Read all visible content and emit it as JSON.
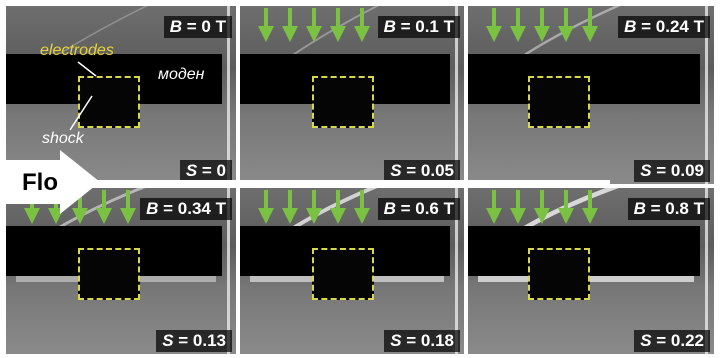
{
  "annotations": {
    "electrodes": "electrodes",
    "model": "моден",
    "shock": "shock",
    "flow": "Flo"
  },
  "panels": [
    {
      "b_label": "B = 0 T",
      "s_label": "S = 0",
      "b_tesla": 0,
      "s_value": 0,
      "arrows": 0
    },
    {
      "b_label": "B = 0.1 T",
      "s_label": "S = 0.05",
      "b_tesla": 0.1,
      "s_value": 0.05,
      "arrows": 5
    },
    {
      "b_label": "B = 0.24 T",
      "s_label": "S = 0.09",
      "b_tesla": 0.24,
      "s_value": 0.09,
      "arrows": 5
    },
    {
      "b_label": "B = 0.34 T",
      "s_label": "S = 0.13",
      "b_tesla": 0.34,
      "s_value": 0.13,
      "arrows": 5
    },
    {
      "b_label": "B = 0.6 T",
      "s_label": "S = 0.18",
      "b_tesla": 0.6,
      "s_value": 0.18,
      "arrows": 5
    },
    {
      "b_label": "B = 0.8 T",
      "s_label": "S = 0.22",
      "b_tesla": 0.8,
      "s_value": 0.22,
      "arrows": 5
    }
  ],
  "colors": {
    "arrow": "#7cc242",
    "electrode_outline": "#d8d84a",
    "electrodes_text": "#e6d23a",
    "shock_line": "#d8d8d8"
  }
}
